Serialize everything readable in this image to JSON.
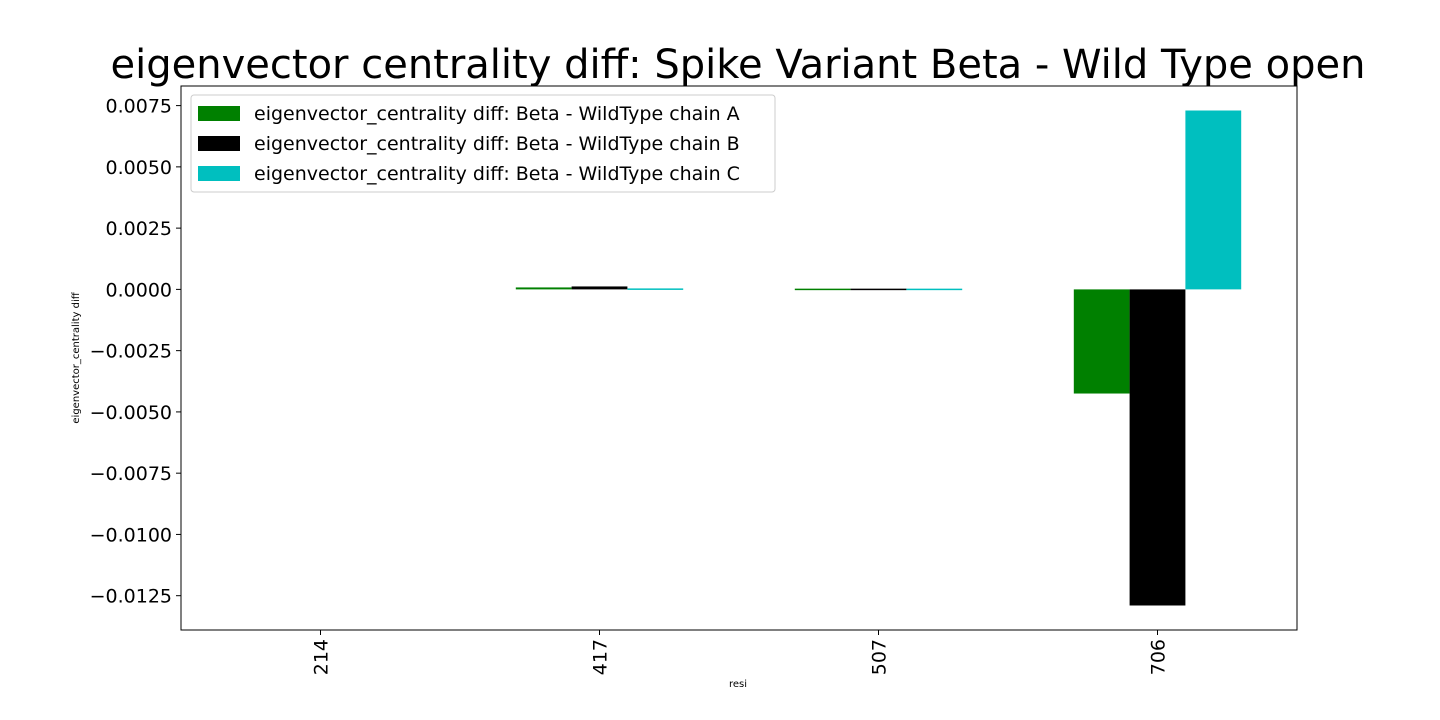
{
  "chart_data": {
    "type": "bar",
    "title": "eigenvector centrality diff: Spike Variant Beta - Wild Type open",
    "xlabel": "resi",
    "ylabel": "eigenvector_centrality diff",
    "categories": [
      "214",
      "417",
      "507",
      "706"
    ],
    "series": [
      {
        "name": "eigenvector_centrality diff: Beta - WildType chain A",
        "color": "#008000",
        "values": [
          0.0,
          8e-05,
          3e-05,
          -0.00425
        ]
      },
      {
        "name": "eigenvector_centrality diff: Beta - WildType chain B",
        "color": "#000000",
        "values": [
          0.0,
          0.00012,
          3e-05,
          -0.0129
        ]
      },
      {
        "name": "eigenvector_centrality diff: Beta - WildType chain C",
        "color": "#00bfbf",
        "values": [
          0.0,
          4e-05,
          3e-05,
          0.0073
        ]
      }
    ],
    "ylim": [
      -0.0139,
      0.0083
    ],
    "yticks": [
      0.0075,
      0.005,
      0.0025,
      0.0,
      -0.0025,
      -0.005,
      -0.0075,
      -0.01,
      -0.0125
    ],
    "ytick_labels": [
      "0.0075",
      "0.0050",
      "0.0025",
      "0.0000",
      "−0.0025",
      "−0.0050",
      "−0.0075",
      "−0.0100",
      "−0.0125"
    ],
    "grid": false,
    "legend_position": "top-left"
  }
}
